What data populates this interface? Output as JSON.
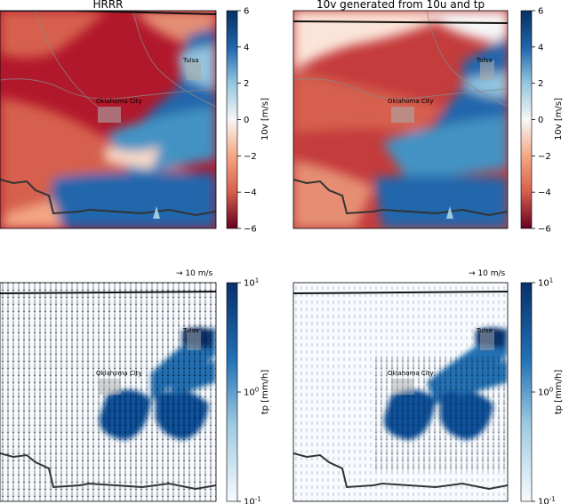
{
  "chart_data": [
    {
      "type": "heatmap",
      "title": "HRRR",
      "field": "10v",
      "colorbar": {
        "label": "10v [m/s]",
        "ticks": [
          6,
          4,
          2,
          0,
          -2,
          -4,
          -6
        ],
        "range": [
          -6,
          6
        ],
        "colormap": "RdBu"
      },
      "annotations": [
        "Oklahoma City",
        "Tulsa"
      ]
    },
    {
      "type": "heatmap",
      "title": "10v generated from 10u and tp",
      "field": "10v",
      "colorbar": {
        "label": "10v [m/s]",
        "ticks": [
          6,
          4,
          2,
          0,
          -2,
          -4,
          -6
        ],
        "range": [
          -6,
          6
        ],
        "colormap": "RdBu"
      },
      "annotations": [
        "Oklahoma City",
        "Tulsa"
      ]
    },
    {
      "type": "heatmap",
      "title": "",
      "field": "tp",
      "quiver_key": "→ 10 m/s",
      "colorbar": {
        "label": "tp [mm/h]",
        "ticks": [
          "10^1",
          "10^0",
          "10^-1"
        ],
        "range": [
          0.1,
          10
        ],
        "scale": "log",
        "colormap": "Blues"
      },
      "annotations": [
        "Oklahoma City",
        "Tulsa"
      ]
    },
    {
      "type": "heatmap",
      "title": "",
      "field": "tp",
      "quiver_key": "→ 10 m/s",
      "colorbar": {
        "label": "tp [mm/h]",
        "ticks": [
          "10^1",
          "10^0",
          "10^-1"
        ],
        "range": [
          0.1,
          10
        ],
        "scale": "log",
        "colormap": "Blues"
      },
      "annotations": [
        "Oklahoma City",
        "Tulsa"
      ]
    }
  ],
  "colors": {
    "red_dark": "#a50f26",
    "red": "#d6604d",
    "white": "#f7f7f7",
    "blue": "#4393c3",
    "blue_dark": "#08306b"
  }
}
